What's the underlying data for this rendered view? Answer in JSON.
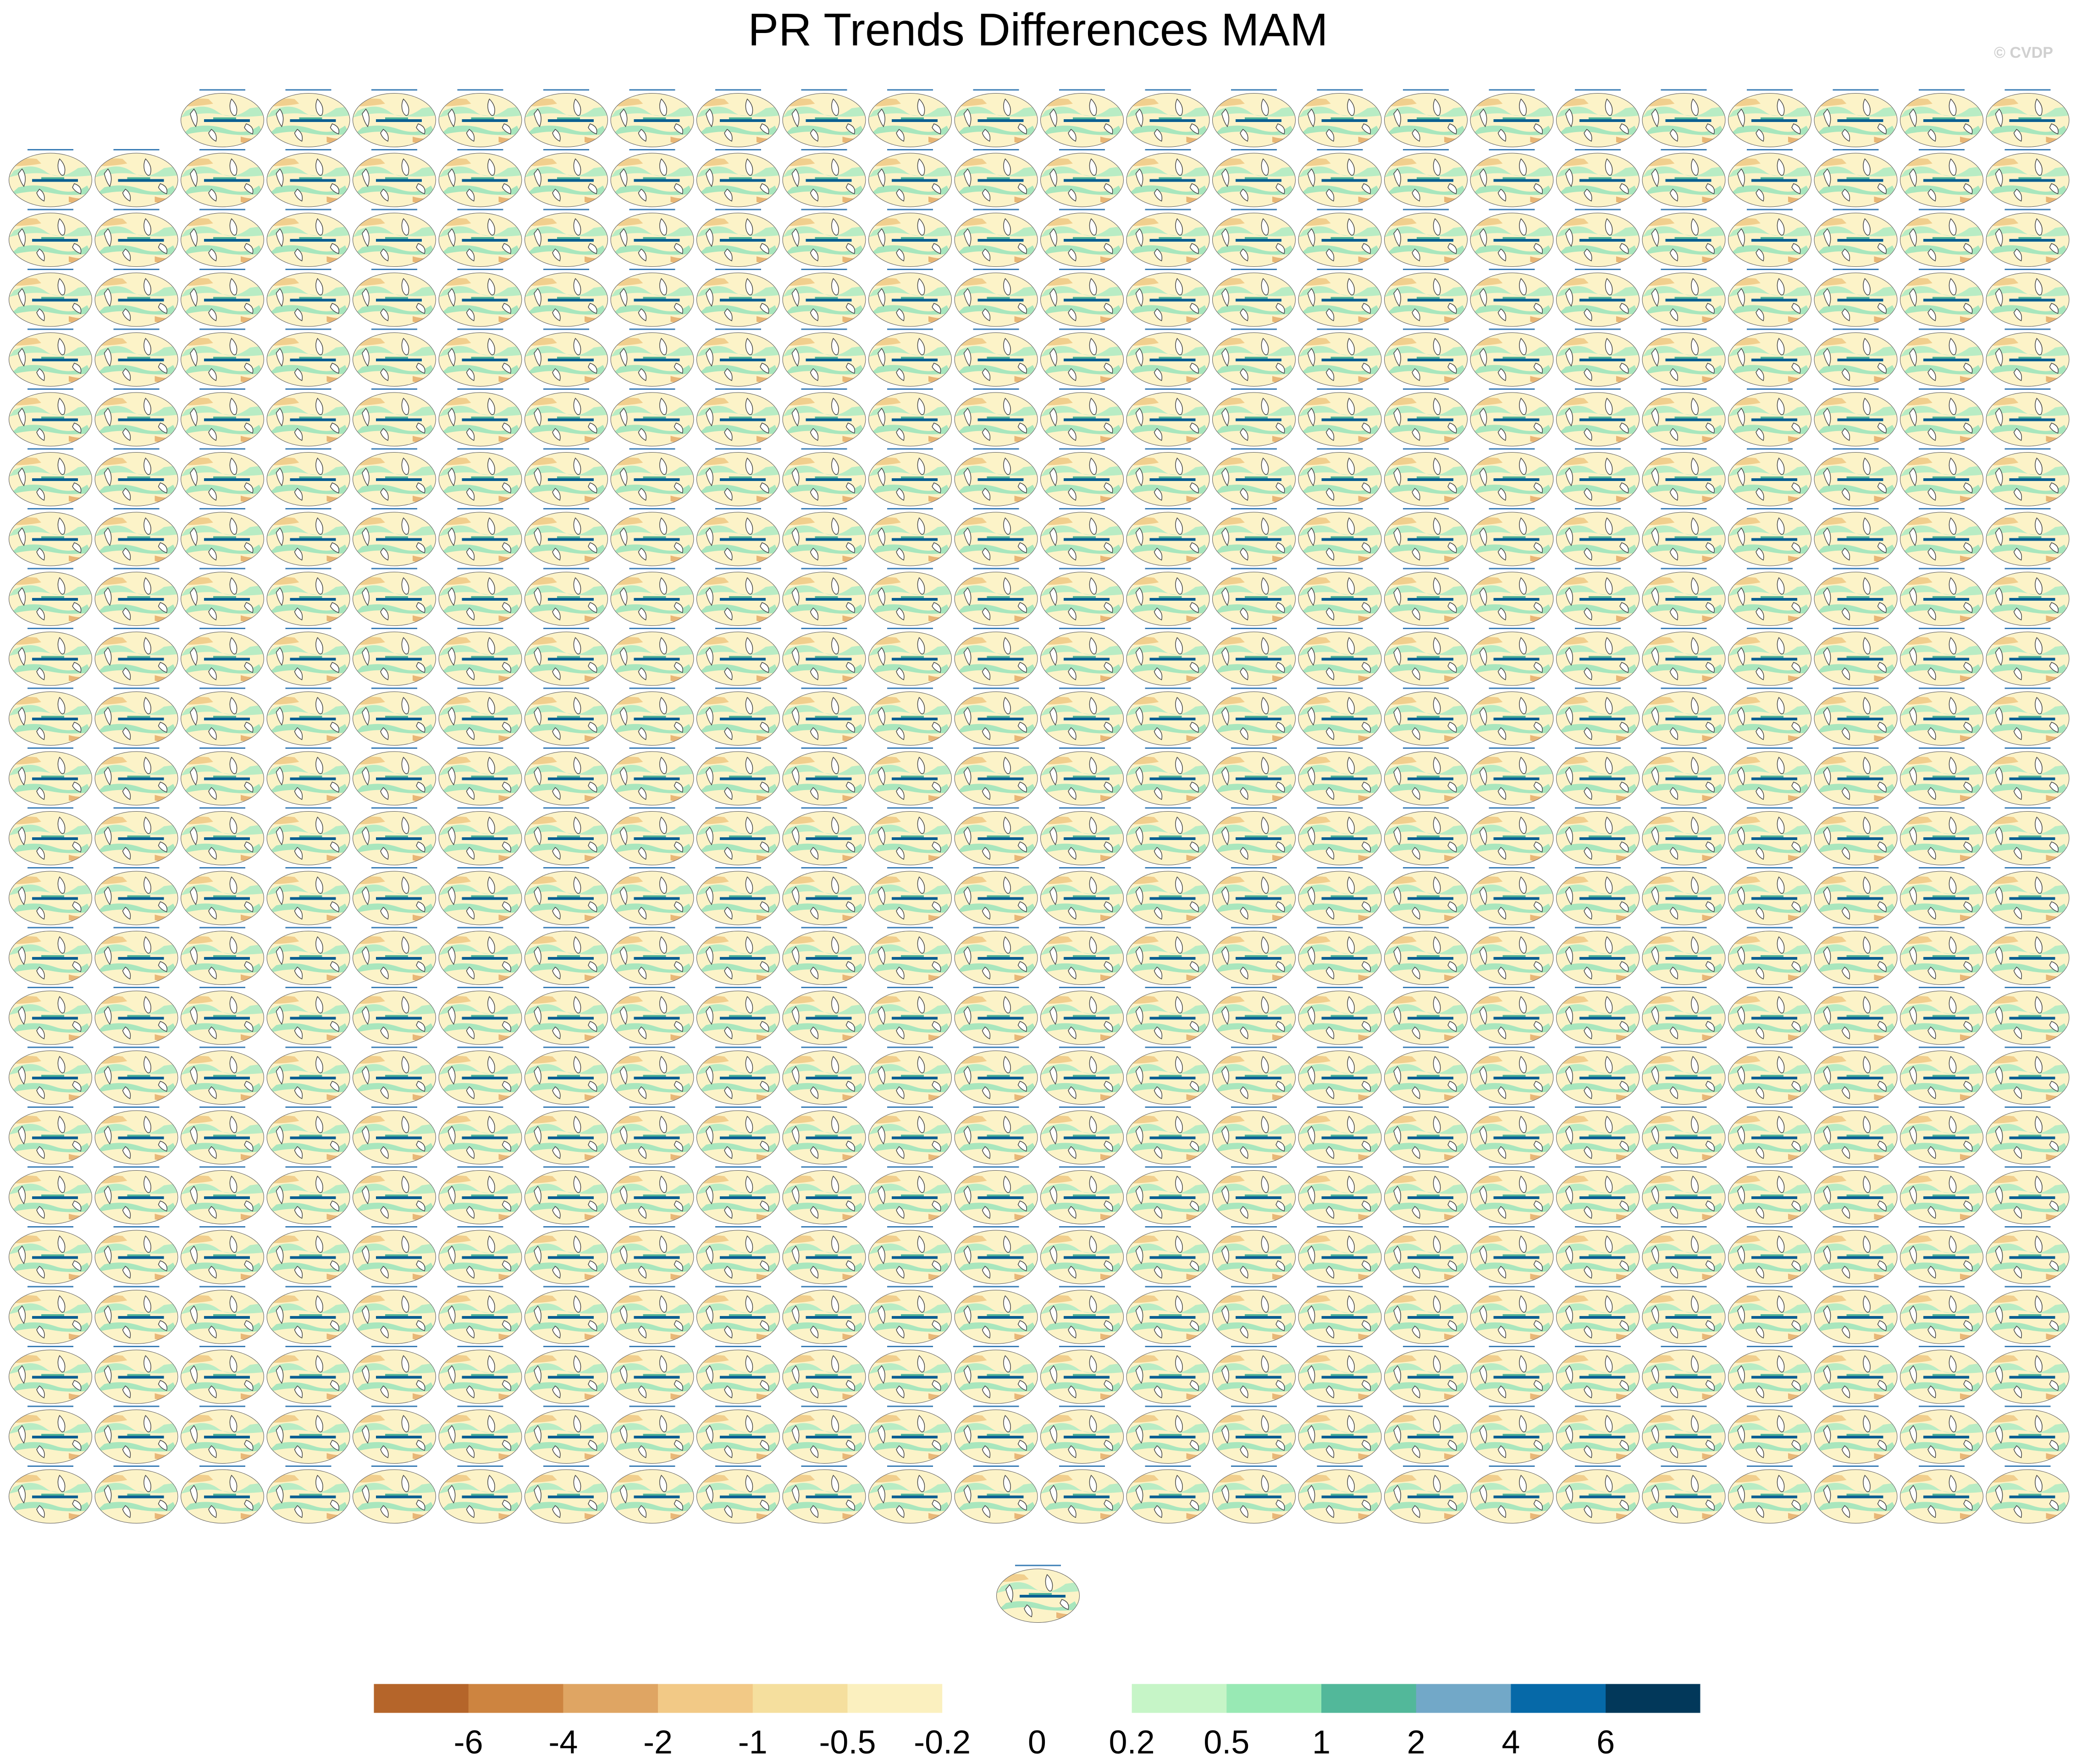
{
  "title": "PR Trends Differences MAM",
  "watermark": "© CVDP",
  "chart_data": {
    "type": "heatmap",
    "title": "PR Trends Differences MAM",
    "description_units": "",
    "panel_grid": {
      "rows": 24,
      "columns": 24,
      "panels_total": 553,
      "first_row_panels": 22,
      "extra_bottom_panels": 1
    },
    "colorbar": {
      "levels": [
        -6,
        -4,
        -2,
        -1,
        -0.5,
        -0.2,
        0,
        0.2,
        0.5,
        1,
        2,
        4,
        6
      ],
      "tick_labels": [
        "-6",
        "-4",
        "-2",
        "-1",
        "-0.5",
        "-0.2",
        "0",
        "0.2",
        "0.5",
        "1",
        "2",
        "4",
        "6"
      ],
      "colors": [
        "#b5652a",
        "#cd8440",
        "#dfa563",
        "#f2c986",
        "#f5df9e",
        "#fbf0bf",
        "#ffffff",
        "#ffffff",
        "#c6f5c7",
        "#98e9b4",
        "#52b89a",
        "#72a8c8",
        "#0669a8",
        "#02385a"
      ]
    },
    "map_colors": {
      "land": "#ffffff",
      "coast": "#333333",
      "panel_title": "#3a7db5"
    }
  }
}
